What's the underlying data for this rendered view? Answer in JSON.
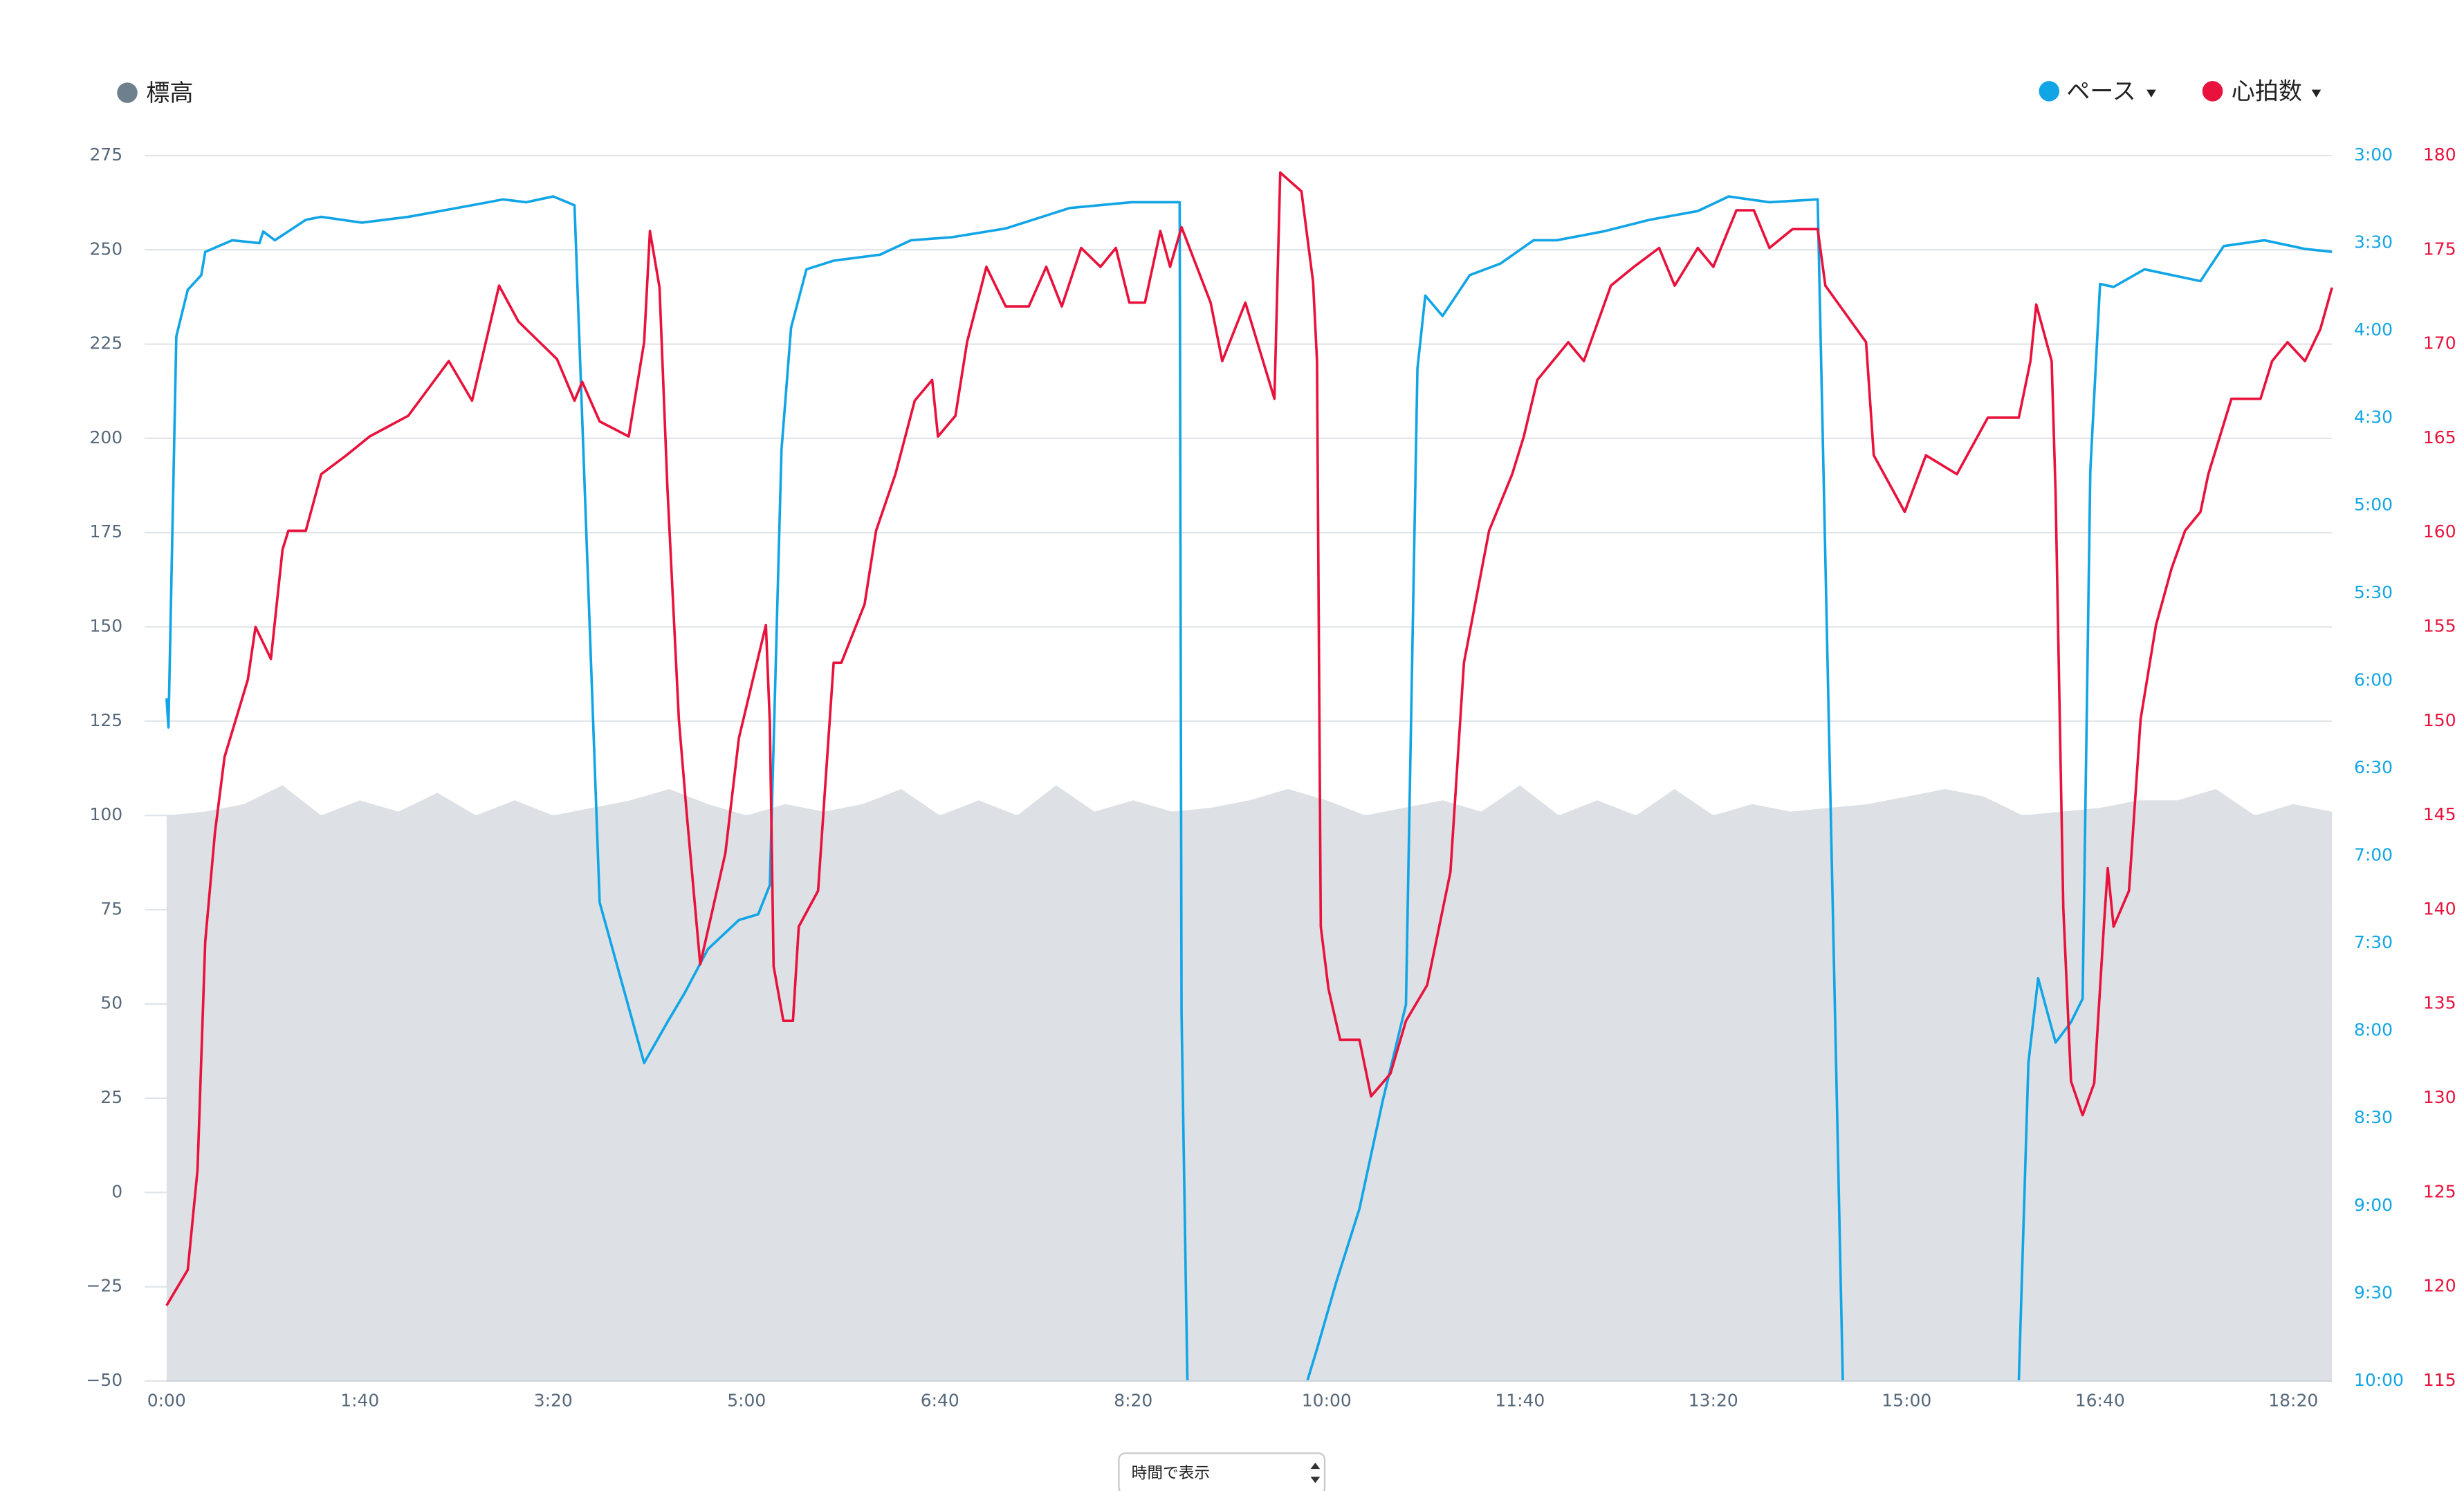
{
  "chart_data": {
    "type": "line",
    "xlim": [
      0,
      1120
    ],
    "xticks": [
      {
        "value": 0,
        "label": "0:00"
      },
      {
        "value": 100,
        "label": "1:40"
      },
      {
        "value": 200,
        "label": "3:20"
      },
      {
        "value": 300,
        "label": "5:00"
      },
      {
        "value": 400,
        "label": "6:40"
      },
      {
        "value": 500,
        "label": "8:20"
      },
      {
        "value": 600,
        "label": "10:00"
      },
      {
        "value": 700,
        "label": "11:40"
      },
      {
        "value": 800,
        "label": "13:20"
      },
      {
        "value": 900,
        "label": "15:00"
      },
      {
        "value": 1000,
        "label": "16:40"
      },
      {
        "value": 1100,
        "label": "18:20"
      }
    ],
    "ylim": [
      -50,
      275
    ],
    "yticks": [
      {
        "value": -50,
        "label": "−50"
      },
      {
        "value": -25,
        "label": "−25"
      },
      0,
      25,
      50,
      75,
      100,
      125,
      150,
      175,
      200,
      225,
      250,
      275
    ],
    "y2lim": [
      600,
      180
    ],
    "y2ticks": [
      {
        "value": 180,
        "label": "3:00"
      },
      {
        "value": 210,
        "label": "3:30"
      },
      {
        "value": 240,
        "label": "4:00"
      },
      {
        "value": 270,
        "label": "4:30"
      },
      {
        "value": 300,
        "label": "5:00"
      },
      {
        "value": 330,
        "label": "5:30"
      },
      {
        "value": 360,
        "label": "6:00"
      },
      {
        "value": 390,
        "label": "6:30"
      },
      {
        "value": 420,
        "label": "7:00"
      },
      {
        "value": 450,
        "label": "7:30"
      },
      {
        "value": 480,
        "label": "8:00"
      },
      {
        "value": 510,
        "label": "8:30"
      },
      {
        "value": 540,
        "label": "9:00"
      },
      {
        "value": 570,
        "label": "9:30"
      },
      {
        "value": 600,
        "label": "10:00"
      }
    ],
    "y3lim": [
      115,
      180
    ],
    "y3ticks": [
      115,
      120,
      125,
      130,
      135,
      140,
      145,
      150,
      155,
      160,
      165,
      170,
      175,
      180
    ],
    "grid": true,
    "series": [
      {
        "name": "標高",
        "color": "#dde1e5",
        "legend_color": "#6e7f8d",
        "style": "area",
        "axis": "y",
        "x": [
          0,
          20,
          40,
          60,
          80,
          100,
          120,
          140,
          160,
          180,
          200,
          220,
          240,
          260,
          280,
          300,
          320,
          340,
          360,
          380,
          400,
          420,
          440,
          460,
          480,
          500,
          520,
          540,
          560,
          580,
          600,
          620,
          640,
          660,
          680,
          700,
          720,
          740,
          760,
          780,
          800,
          820,
          840,
          860,
          880,
          900,
          920,
          940,
          960,
          980,
          1000,
          1020,
          1040,
          1060,
          1080,
          1100,
          1120
        ],
        "values": [
          100,
          101,
          103,
          108,
          100,
          104,
          101,
          106,
          100,
          104,
          100,
          102,
          104,
          107,
          103,
          100,
          103,
          101,
          103,
          107,
          100,
          104,
          100,
          108,
          101,
          104,
          101,
          102,
          104,
          107,
          104,
          100,
          102,
          104,
          101,
          108,
          100,
          104,
          100,
          107,
          100,
          103,
          101,
          102,
          103,
          105,
          107,
          105,
          100,
          101,
          102,
          104,
          104,
          107,
          100,
          103,
          101
        ]
      },
      {
        "name": "ペース",
        "color": "#12a5e6",
        "style": "line",
        "axis": "y2",
        "x": [
          0,
          1,
          5,
          11,
          18,
          20,
          34,
          48,
          50,
          56,
          72,
          80,
          101,
          125,
          158,
          174,
          186,
          200,
          211,
          224,
          247,
          259,
          268,
          280,
          296,
          306,
          312,
          318,
          323,
          331,
          345,
          369,
          385,
          406,
          434,
          467,
          499,
          524,
          525,
          528,
          560,
          590,
          595,
          605,
          617,
          629,
          641,
          647,
          651,
          660,
          674,
          690,
          707,
          719,
          743,
          767,
          792,
          808,
          829,
          854,
          857,
          867,
          910,
          958,
          963,
          968,
          977,
          985,
          991,
          995,
          1000,
          1007,
          1023,
          1052,
          1064,
          1085,
          1106,
          1120
        ],
        "values": [
          366,
          376,
          242,
          226,
          221,
          213,
          209,
          210,
          206,
          209,
          202,
          201,
          203,
          201,
          197,
          195,
          196,
          194,
          197,
          436,
          491,
          477,
          467,
          452,
          442,
          440,
          430,
          281,
          239,
          219,
          216,
          214,
          209,
          208,
          205,
          198,
          196,
          196,
          474,
          600,
          null,
          600,
          589,
          566,
          541,
          504,
          471,
          253,
          228,
          235,
          221,
          217,
          209,
          209,
          206,
          202,
          199,
          194,
          196,
          195,
          288,
          600,
          null,
          600,
          491,
          462,
          484,
          477,
          469,
          288,
          224,
          225,
          219,
          223,
          211,
          209,
          212,
          213
        ]
      },
      {
        "name": "心拍数",
        "color": "#e8123c",
        "style": "line",
        "axis": "y3",
        "x": [
          0,
          11,
          16,
          20,
          25,
          30,
          42,
          46,
          54,
          60,
          63,
          72,
          80,
          93,
          105,
          125,
          146,
          158,
          172,
          182,
          202,
          211,
          215,
          224,
          239,
          247,
          250,
          255,
          259,
          265,
          269,
          276,
          289,
          296,
          310,
          312,
          314,
          319,
          324,
          327,
          337,
          345,
          349,
          361,
          367,
          377,
          387,
          396,
          399,
          408,
          414,
          424,
          434,
          446,
          455,
          463,
          473,
          483,
          491,
          498,
          506,
          514,
          519,
          525,
          540,
          546,
          558,
          573,
          576,
          587,
          593,
          595,
          597,
          601,
          607,
          617,
          623,
          633,
          641,
          652,
          664,
          671,
          684,
          696,
          702,
          709,
          725,
          733,
          747,
          759,
          772,
          780,
          792,
          800,
          812,
          821,
          829,
          841,
          854,
          858,
          879,
          883,
          899,
          910,
          926,
          942,
          958,
          964,
          967,
          975,
          977,
          981,
          985,
          991,
          997,
          1002,
          1004,
          1007,
          1015,
          1021,
          1029,
          1037,
          1044,
          1052,
          1056,
          1068,
          1083,
          1089,
          1097,
          1106,
          1114,
          1120
        ],
        "values": [
          119.0,
          120.9,
          126.2,
          138.3,
          144.1,
          148.1,
          152.2,
          155.0,
          153.3,
          159.1,
          160.1,
          160.1,
          163.1,
          164.1,
          165.1,
          166.2,
          169.1,
          167.0,
          173.1,
          171.2,
          169.2,
          167.0,
          168.0,
          165.9,
          165.1,
          170.1,
          176.0,
          173.0,
          162.4,
          150.1,
          145.1,
          137.1,
          143.0,
          149.1,
          155.1,
          149.9,
          137.0,
          134.1,
          134.1,
          139.1,
          141.0,
          153.1,
          153.1,
          156.2,
          160.1,
          163.1,
          167.0,
          168.1,
          165.1,
          166.2,
          170.1,
          174.1,
          172.0,
          172.0,
          174.1,
          172.0,
          175.1,
          174.1,
          175.1,
          172.2,
          172.2,
          176.0,
          174.1,
          176.2,
          172.2,
          169.1,
          172.2,
          167.1,
          179.1,
          178.1,
          173.3,
          169.1,
          139.1,
          135.8,
          133.1,
          133.1,
          130.1,
          131.3,
          134.1,
          136.0,
          142.0,
          153.1,
          160.1,
          163.1,
          165.1,
          168.1,
          170.1,
          169.1,
          173.1,
          174.1,
          175.1,
          173.1,
          175.1,
          174.1,
          177.1,
          177.1,
          175.1,
          176.1,
          176.1,
          173.1,
          170.1,
          164.1,
          161.1,
          164.1,
          163.1,
          166.1,
          166.1,
          169.1,
          172.1,
          169.1,
          162.1,
          140.1,
          130.9,
          129.1,
          130.8,
          139.1,
          142.2,
          139.1,
          141.0,
          150.1,
          155.1,
          158.1,
          160.1,
          161.1,
          163.1,
          167.1,
          167.1,
          169.1,
          170.1,
          169.1,
          170.8,
          173.0
        ]
      }
    ]
  },
  "view_mode": "時間で表示"
}
